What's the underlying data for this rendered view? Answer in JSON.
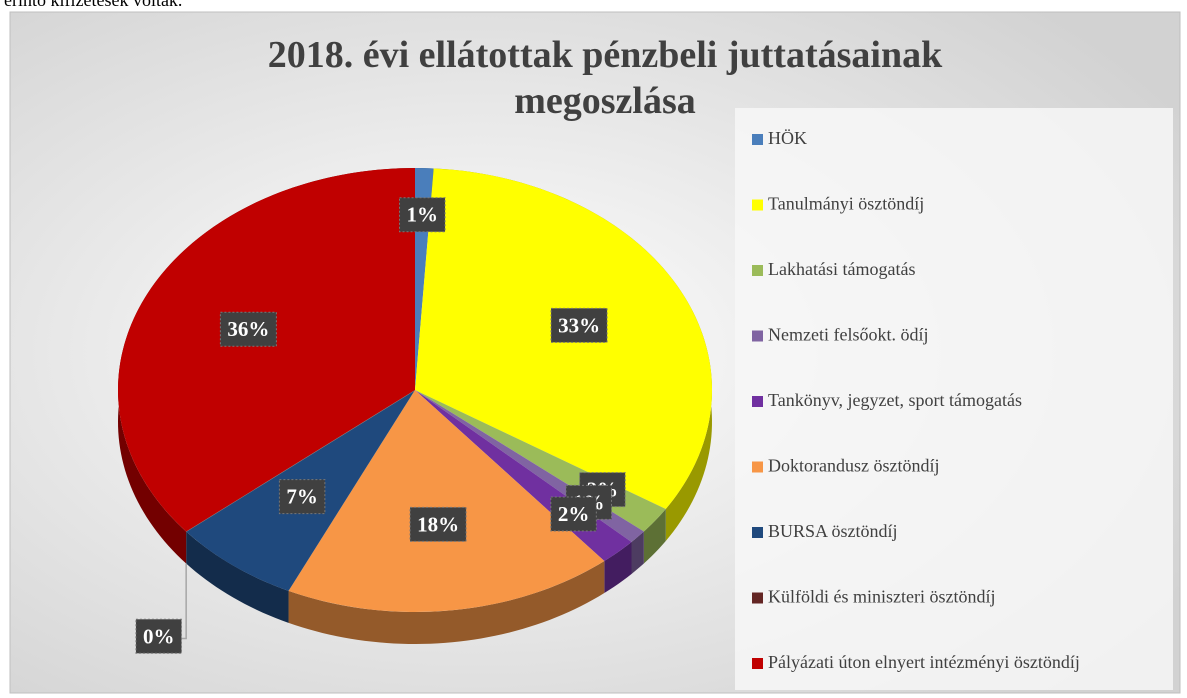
{
  "page_text": "érintő kifizetések voltak.",
  "chart_data": {
    "type": "pie",
    "title": "2018. évi ellátottak pénzbeli juttatásainak megoszlása",
    "categories": [
      "HÖK",
      "Tanulmányi ösztöndíj",
      "Lakhatási támogatás",
      "Nemzeti felsőokt. ödíj",
      "Tankönyv, jegyzet, sport támogatás",
      "Doktorandusz ösztöndíj",
      "BURSA ösztöndíj",
      "Külföldi és miniszteri ösztöndíj",
      "Pályázati úton elnyert intézményi ösztöndíj"
    ],
    "values": [
      1,
      33,
      2,
      1,
      2,
      18,
      7,
      0,
      36
    ],
    "value_labels": [
      "1%",
      "33%",
      "2%",
      "1%",
      "2%",
      "18%",
      "7%",
      "0%",
      "36%"
    ],
    "colors": [
      "#4a7ebb",
      "#ffff00",
      "#9bbb59",
      "#8064a2",
      "#7030a0",
      "#f79646",
      "#1f497d",
      "#632523",
      "#c00000"
    ],
    "legend": "right"
  }
}
